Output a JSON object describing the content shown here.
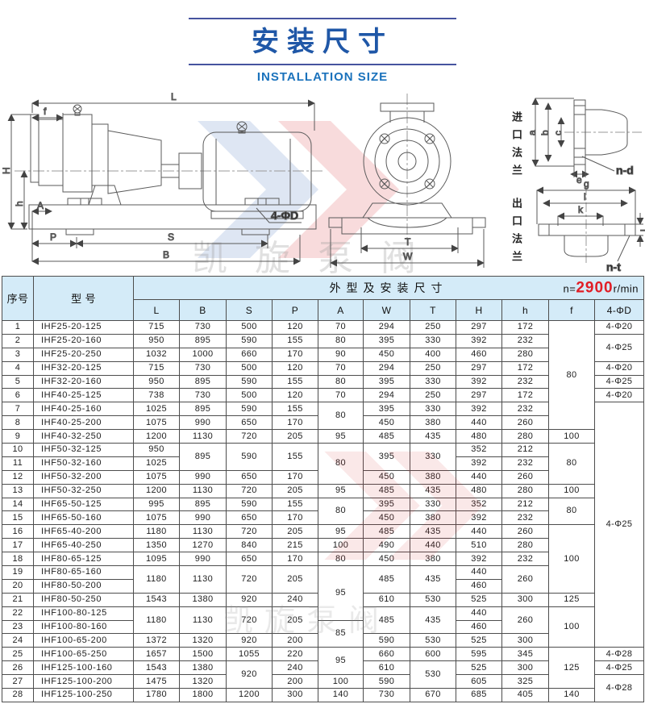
{
  "title": {
    "zh": "安装尺寸",
    "en": "INSTALLATION SIZE"
  },
  "watermark": {
    "text": "凯旋泵阀"
  },
  "drawings": {
    "side_view": {
      "labels": {
        "L": "L",
        "f": "f",
        "H": "H",
        "h": "h",
        "A": "A",
        "P": "P",
        "S": "S",
        "B": "B",
        "holes": "4-ΦD"
      }
    },
    "front_view": {
      "labels": {
        "T": "T",
        "W": "W"
      }
    },
    "inlet_flange": {
      "caption": "进口法兰",
      "labels": {
        "a": "a",
        "b": "b",
        "c": "c",
        "e": "e",
        "nd": "n-d"
      }
    },
    "outlet_flange": {
      "caption": "出口法兰",
      "labels": {
        "g": "g",
        "i": "i",
        "k": "k",
        "j": "j",
        "nt": "n-t"
      }
    }
  },
  "table": {
    "corner": {
      "no": "序号",
      "model": "型  号"
    },
    "group_header": "外型及安装尺寸",
    "speed": {
      "prefix": "n=",
      "value": "2900",
      "suffix": "r/min"
    },
    "columns": [
      "L",
      "B",
      "S",
      "P",
      "A",
      "W",
      "T",
      "H",
      "h",
      "f",
      "4-ΦD"
    ],
    "rows": [
      {
        "no": "1",
        "model": "IHF25-20-125",
        "dims": [
          [
            "715"
          ],
          [
            "730"
          ],
          [
            "500"
          ],
          [
            "120"
          ],
          [
            "70"
          ],
          [
            "294"
          ],
          [
            "250"
          ],
          [
            "297"
          ],
          [
            "172"
          ],
          [
            "80",
            8
          ],
          [
            "4-Φ20"
          ]
        ]
      },
      {
        "no": "2",
        "model": "IHF25-20-160",
        "dims": [
          [
            "950"
          ],
          [
            "895"
          ],
          [
            "590"
          ],
          [
            "155"
          ],
          [
            "80"
          ],
          [
            "395"
          ],
          [
            "330"
          ],
          [
            "392"
          ],
          [
            "232"
          ],
          [
            "4-Φ25",
            2
          ]
        ]
      },
      {
        "no": "3",
        "model": "IHF25-20-250",
        "dims": [
          [
            "1032"
          ],
          [
            "1000"
          ],
          [
            "660"
          ],
          [
            "170"
          ],
          [
            "90"
          ],
          [
            "450"
          ],
          [
            "400"
          ],
          [
            "460"
          ],
          [
            "280"
          ]
        ]
      },
      {
        "no": "4",
        "model": "IHF32-20-125",
        "dims": [
          [
            "715"
          ],
          [
            "730"
          ],
          [
            "500"
          ],
          [
            "120"
          ],
          [
            "70"
          ],
          [
            "294"
          ],
          [
            "250"
          ],
          [
            "297"
          ],
          [
            "172"
          ],
          [
            "4-Φ20"
          ]
        ]
      },
      {
        "no": "5",
        "model": "IHF32-20-160",
        "dims": [
          [
            "950"
          ],
          [
            "895"
          ],
          [
            "590"
          ],
          [
            "155"
          ],
          [
            "80"
          ],
          [
            "395"
          ],
          [
            "330"
          ],
          [
            "392"
          ],
          [
            "232"
          ],
          [
            "4-Φ25"
          ]
        ]
      },
      {
        "no": "6",
        "model": "IHF40-25-125",
        "dims": [
          [
            "738"
          ],
          [
            "730"
          ],
          [
            "500"
          ],
          [
            "120"
          ],
          [
            "70"
          ],
          [
            "294"
          ],
          [
            "250"
          ],
          [
            "297"
          ],
          [
            "172"
          ],
          [
            "4-Φ20"
          ]
        ]
      },
      {
        "no": "7",
        "model": "IHF40-25-160",
        "dims": [
          [
            "1025"
          ],
          [
            "895"
          ],
          [
            "590"
          ],
          [
            "155"
          ],
          [
            "80",
            2
          ],
          [
            "395"
          ],
          [
            "330"
          ],
          [
            "392"
          ],
          [
            "232"
          ],
          [
            "4-Φ25",
            18
          ]
        ]
      },
      {
        "no": "8",
        "model": "IHF40-25-200",
        "dims": [
          [
            "1075"
          ],
          [
            "990"
          ],
          [
            "650"
          ],
          [
            "170"
          ],
          [
            "450"
          ],
          [
            "380"
          ],
          [
            "440"
          ],
          [
            "260"
          ]
        ]
      },
      {
        "no": "9",
        "model": "IHF40-32-250",
        "dims": [
          [
            "1200"
          ],
          [
            "1130"
          ],
          [
            "720"
          ],
          [
            "205"
          ],
          [
            "95"
          ],
          [
            "485"
          ],
          [
            "435"
          ],
          [
            "480"
          ],
          [
            "280"
          ],
          [
            "100"
          ]
        ]
      },
      {
        "no": "10",
        "model": "IHF50-32-125",
        "dims": [
          [
            "950"
          ],
          [
            "895",
            2
          ],
          [
            "590",
            2
          ],
          [
            "155",
            2
          ],
          [
            "80",
            3
          ],
          [
            "395",
            2
          ],
          [
            "330",
            2
          ],
          [
            "352"
          ],
          [
            "212"
          ],
          [
            "80",
            3
          ]
        ]
      },
      {
        "no": "11",
        "model": "IHF50-32-160",
        "dims": [
          [
            "1025"
          ],
          [
            "392"
          ],
          [
            "232"
          ]
        ]
      },
      {
        "no": "12",
        "model": "IHF50-32-200",
        "dims": [
          [
            "1075"
          ],
          [
            "990"
          ],
          [
            "650"
          ],
          [
            "170"
          ],
          [
            "450"
          ],
          [
            "380"
          ],
          [
            "440"
          ],
          [
            "260"
          ]
        ]
      },
      {
        "no": "13",
        "model": "IHF50-32-250",
        "dims": [
          [
            "1200"
          ],
          [
            "1130"
          ],
          [
            "720"
          ],
          [
            "205"
          ],
          [
            "95"
          ],
          [
            "485"
          ],
          [
            "435"
          ],
          [
            "480"
          ],
          [
            "280"
          ],
          [
            "100"
          ]
        ]
      },
      {
        "no": "14",
        "model": "IHF65-50-125",
        "dims": [
          [
            "995"
          ],
          [
            "895"
          ],
          [
            "590"
          ],
          [
            "155"
          ],
          [
            "80",
            2
          ],
          [
            "395"
          ],
          [
            "330"
          ],
          [
            "352"
          ],
          [
            "212"
          ],
          [
            "80",
            2
          ]
        ]
      },
      {
        "no": "15",
        "model": "IHF65-50-160",
        "dims": [
          [
            "1075"
          ],
          [
            "990"
          ],
          [
            "650"
          ],
          [
            "170"
          ],
          [
            "450"
          ],
          [
            "380"
          ],
          [
            "392"
          ],
          [
            "232"
          ]
        ]
      },
      {
        "no": "16",
        "model": "IHF65-40-200",
        "dims": [
          [
            "1180"
          ],
          [
            "1130"
          ],
          [
            "720"
          ],
          [
            "205"
          ],
          [
            "95"
          ],
          [
            "485"
          ],
          [
            "435"
          ],
          [
            "440"
          ],
          [
            "260"
          ],
          [
            "100",
            5
          ]
        ]
      },
      {
        "no": "17",
        "model": "IHF65-40-250",
        "dims": [
          [
            "1350"
          ],
          [
            "1270"
          ],
          [
            "840"
          ],
          [
            "215"
          ],
          [
            "100"
          ],
          [
            "490"
          ],
          [
            "440"
          ],
          [
            "510"
          ],
          [
            "280"
          ]
        ]
      },
      {
        "no": "18",
        "model": "IHF80-65-125",
        "dims": [
          [
            "1095"
          ],
          [
            "990"
          ],
          [
            "650"
          ],
          [
            "170"
          ],
          [
            "80"
          ],
          [
            "450"
          ],
          [
            "380"
          ],
          [
            "392"
          ],
          [
            "232"
          ]
        ]
      },
      {
        "no": "19",
        "model": "IHF80-65-160",
        "dims": [
          [
            "1180",
            2
          ],
          [
            "1130",
            2
          ],
          [
            "720",
            2
          ],
          [
            "205",
            2
          ],
          [
            "95",
            4
          ],
          [
            "485",
            2
          ],
          [
            "435",
            2
          ],
          [
            "440"
          ],
          [
            "260",
            2
          ]
        ]
      },
      {
        "no": "20",
        "model": "IHF80-50-200",
        "dims": [
          [
            "460"
          ]
        ]
      },
      {
        "no": "21",
        "model": "IHF80-50-250",
        "dims": [
          [
            "1543"
          ],
          [
            "1380"
          ],
          [
            "920"
          ],
          [
            "240"
          ],
          [
            "610"
          ],
          [
            "530"
          ],
          [
            "525"
          ],
          [
            "300"
          ],
          [
            "125"
          ]
        ]
      },
      {
        "no": "22",
        "model": "IHF100-80-125",
        "dims": [
          [
            "1180",
            2
          ],
          [
            "1130",
            2
          ],
          [
            "720",
            2
          ],
          [
            "205",
            2
          ],
          [
            "485",
            2
          ],
          [
            "435",
            2
          ],
          [
            "440"
          ],
          [
            "260",
            2
          ],
          [
            "100",
            3
          ]
        ]
      },
      {
        "no": "23",
        "model": "IHF100-80-160",
        "dims": [
          [
            "85",
            2
          ],
          [
            "460"
          ]
        ]
      },
      {
        "no": "24",
        "model": "IHF100-65-200",
        "dims": [
          [
            "1372"
          ],
          [
            "1320"
          ],
          [
            "920"
          ],
          [
            "200"
          ],
          [
            "590"
          ],
          [
            "530"
          ],
          [
            "525"
          ],
          [
            "300"
          ]
        ]
      },
      {
        "no": "25",
        "model": "IHF100-65-250",
        "dims": [
          [
            "1657"
          ],
          [
            "1500"
          ],
          [
            "1055"
          ],
          [
            "220"
          ],
          [
            "95",
            2
          ],
          [
            "660"
          ],
          [
            "600"
          ],
          [
            "595"
          ],
          [
            "345"
          ],
          [
            "125",
            3
          ],
          [
            "4-Φ28"
          ]
        ]
      },
      {
        "no": "26",
        "model": "IHF125-100-160",
        "dims": [
          [
            "1543"
          ],
          [
            "1380"
          ],
          [
            "920",
            2
          ],
          [
            "240"
          ],
          [
            "610"
          ],
          [
            "530",
            2
          ],
          [
            "525"
          ],
          [
            "300"
          ],
          [
            "4-Φ25"
          ]
        ]
      },
      {
        "no": "27",
        "model": "IHF125-100-200",
        "dims": [
          [
            "1475"
          ],
          [
            "1320"
          ],
          [
            "200"
          ],
          [
            "100"
          ],
          [
            "590"
          ],
          [
            "605"
          ],
          [
            "325"
          ],
          [
            "4-Φ28",
            2
          ]
        ]
      },
      {
        "no": "28",
        "model": "IHF125-100-250",
        "dims": [
          [
            "1780"
          ],
          [
            "1800"
          ],
          [
            "1200"
          ],
          [
            "300"
          ],
          [
            "140"
          ],
          [
            "730"
          ],
          [
            "670"
          ],
          [
            "685"
          ],
          [
            "405"
          ],
          [
            "140"
          ]
        ]
      }
    ]
  }
}
